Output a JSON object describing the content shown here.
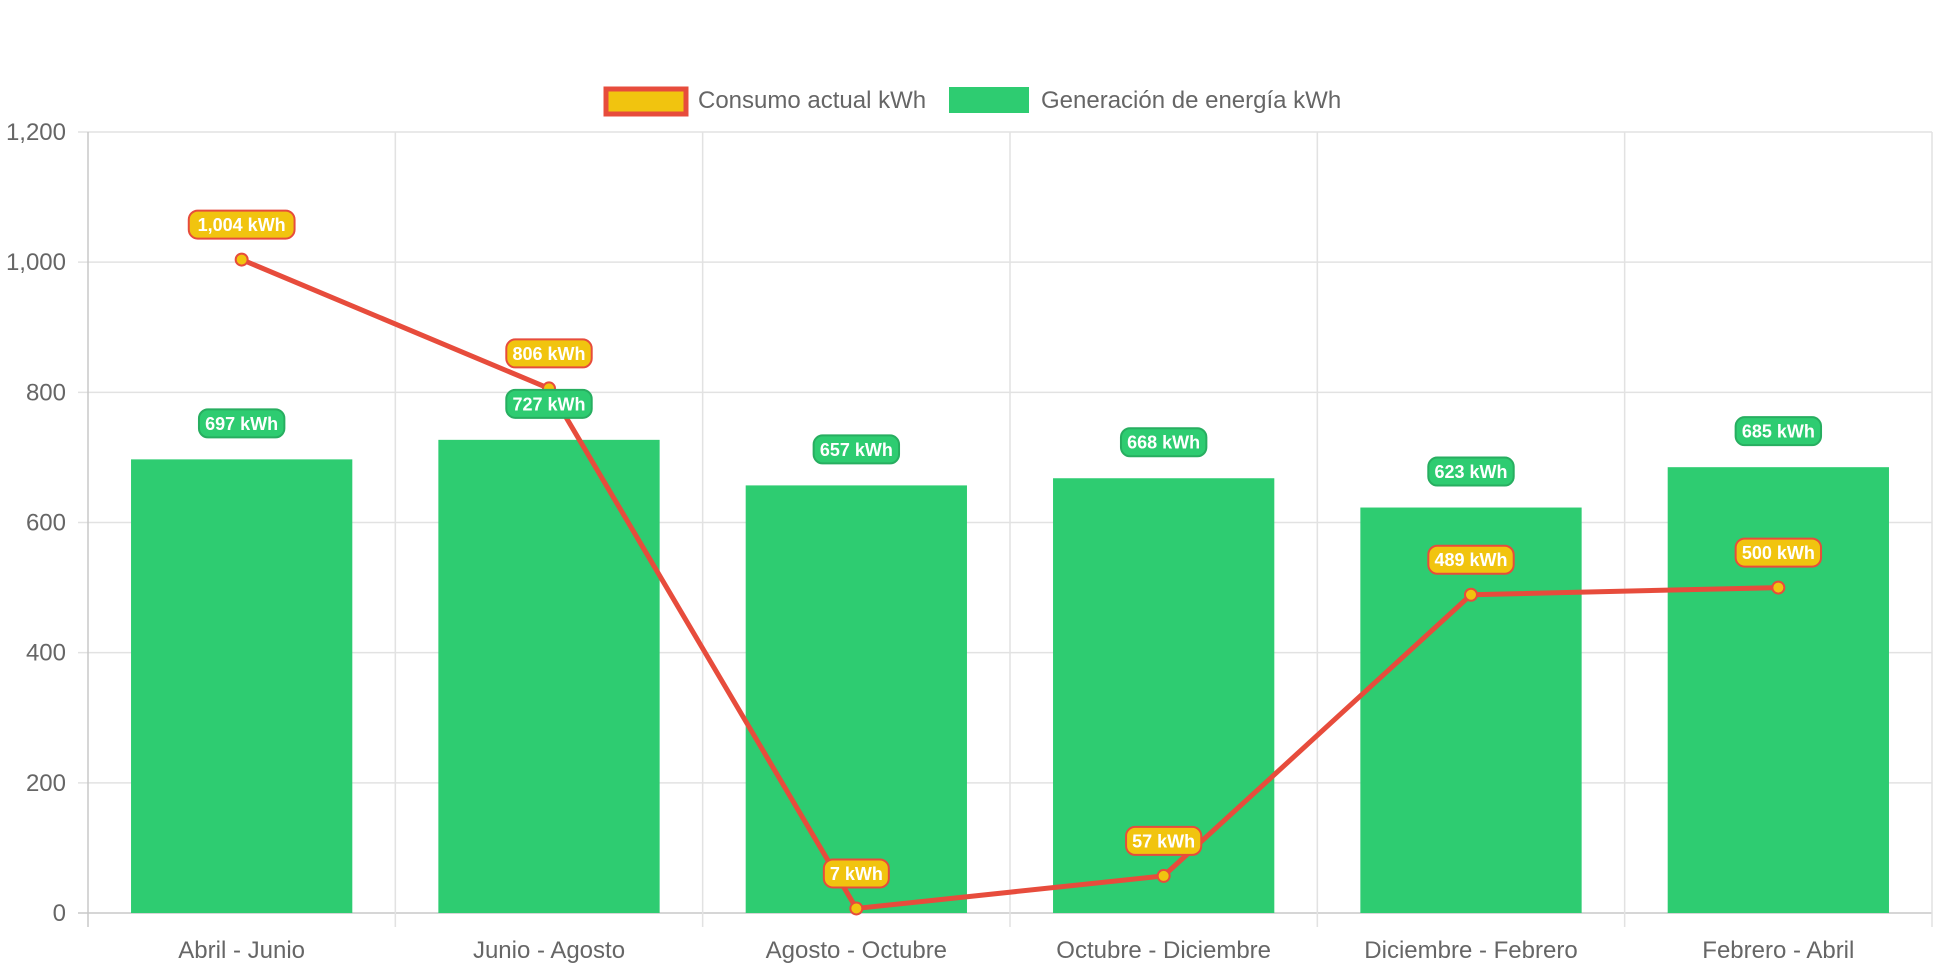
{
  "chart_data": {
    "type": "bar",
    "categories": [
      "Abril - Junio",
      "Junio - Agosto",
      "Agosto - Octubre",
      "Octubre - Diciembre",
      "Diciembre - Febrero",
      "Febrero - Abril"
    ],
    "series": [
      {
        "name": "Consumo actual kWh",
        "type": "line",
        "values": [
          1004,
          806,
          7,
          57,
          489,
          500
        ],
        "labels": [
          "1,004 kWh",
          "806 kWh",
          "7 kWh",
          "57 kWh",
          "489 kWh",
          "500 kWh"
        ],
        "color": "#e74c3c",
        "fill": "#f1c40f"
      },
      {
        "name": "Generación de energía kWh",
        "type": "bar",
        "values": [
          697,
          727,
          657,
          668,
          623,
          685
        ],
        "labels": [
          "697 kWh",
          "727 kWh",
          "657 kWh",
          "668 kWh",
          "623 kWh",
          "685 kWh"
        ],
        "color": "#2ecc71",
        "border": "#27ae60"
      }
    ],
    "y_ticks": [
      "0",
      "200",
      "400",
      "600",
      "800",
      "1,000",
      "1,200"
    ],
    "ylim": [
      0,
      1200
    ],
    "grid": true,
    "legend": "top-center"
  }
}
